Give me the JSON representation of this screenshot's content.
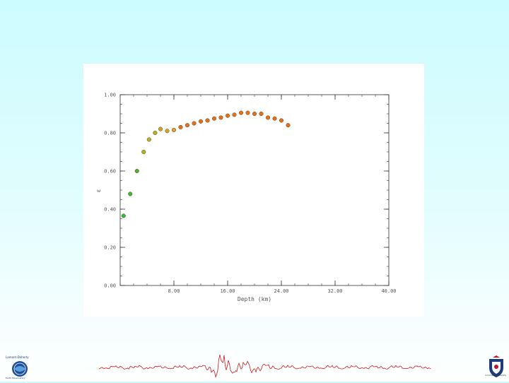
{
  "chart_data": {
    "type": "scatter",
    "title": "",
    "xlabel": "Depth (km)",
    "ylabel": "ε",
    "xlim": [
      0,
      40
    ],
    "ylim": [
      0,
      1
    ],
    "x_ticks": [
      8,
      16,
      24,
      32,
      40
    ],
    "x_tick_labels": [
      "8.00",
      "16.00",
      "24.00",
      "32.00",
      "40.00"
    ],
    "y_ticks": [
      0,
      0.2,
      0.4,
      0.6,
      0.8,
      1.0
    ],
    "y_tick_labels": [
      "0.00",
      "0.20",
      "0.40",
      "0.60",
      "0.80",
      "1.00"
    ],
    "grid": false,
    "points": [
      {
        "x": 0.5,
        "y": 0.365
      },
      {
        "x": 1.5,
        "y": 0.48
      },
      {
        "x": 2.5,
        "y": 0.6
      },
      {
        "x": 3.5,
        "y": 0.7
      },
      {
        "x": 4.3,
        "y": 0.765
      },
      {
        "x": 5.2,
        "y": 0.8
      },
      {
        "x": 6.0,
        "y": 0.82
      },
      {
        "x": 7.0,
        "y": 0.81
      },
      {
        "x": 8.0,
        "y": 0.815
      },
      {
        "x": 9.0,
        "y": 0.83
      },
      {
        "x": 10.0,
        "y": 0.84
      },
      {
        "x": 11.0,
        "y": 0.85
      },
      {
        "x": 12.0,
        "y": 0.86
      },
      {
        "x": 13.0,
        "y": 0.865
      },
      {
        "x": 14.0,
        "y": 0.875
      },
      {
        "x": 15.0,
        "y": 0.88
      },
      {
        "x": 16.0,
        "y": 0.89
      },
      {
        "x": 17.0,
        "y": 0.895
      },
      {
        "x": 18.0,
        "y": 0.905
      },
      {
        "x": 19.0,
        "y": 0.905
      },
      {
        "x": 20.0,
        "y": 0.9
      },
      {
        "x": 21.0,
        "y": 0.9
      },
      {
        "x": 22.0,
        "y": 0.88
      },
      {
        "x": 23.0,
        "y": 0.875
      },
      {
        "x": 24.0,
        "y": 0.865
      },
      {
        "x": 25.0,
        "y": 0.84
      }
    ],
    "marker_colors": {
      "start": "#2bbd3e",
      "end": "#e0701e"
    }
  },
  "footer": {
    "logo_left_text_top": "Lamont-Doherty",
    "logo_left_text_bottom": "Earth Observatory",
    "logo_right_text": "Columbia University",
    "seismogram_color": "#d11a1a"
  }
}
